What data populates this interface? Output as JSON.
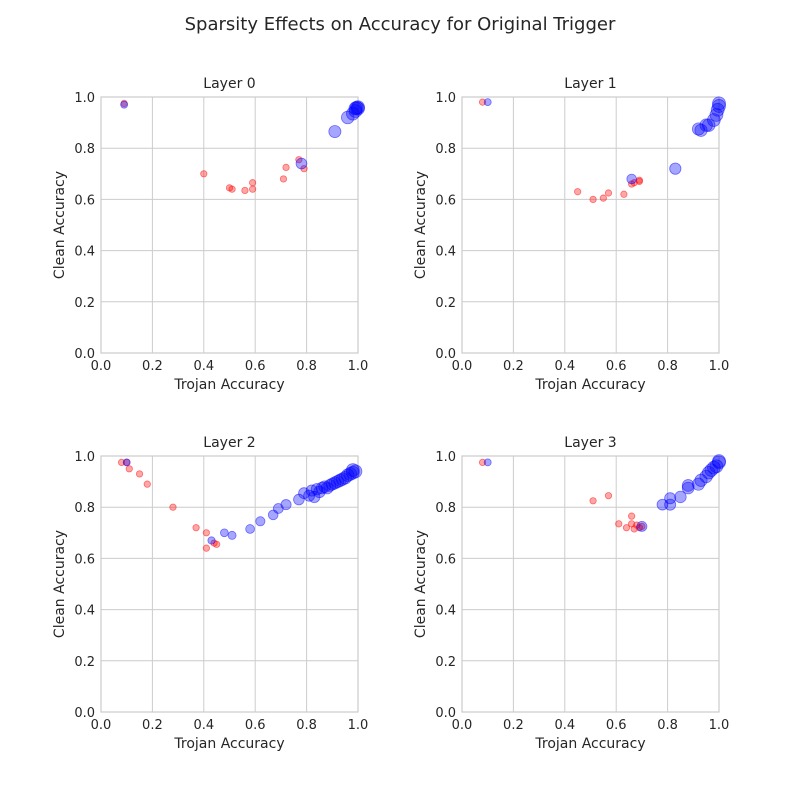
{
  "figure": {
    "title": "Sparsity Effects on Accuracy for Original Trigger"
  },
  "colors": {
    "red_series": "#ff0000",
    "blue_series": "#0000ff",
    "grid": "#cccccc",
    "text": "#262626"
  },
  "chart_data": [
    {
      "type": "scatter",
      "title": "Layer 0",
      "xlabel": "Trojan Accuracy",
      "ylabel": "Clean Accuracy",
      "xlim": [
        0.0,
        1.0
      ],
      "ylim": [
        0.0,
        1.0
      ],
      "xticks": [
        "0.0",
        "0.2",
        "0.4",
        "0.6",
        "0.8",
        "1.0"
      ],
      "yticks": [
        "0.0",
        "0.2",
        "0.4",
        "0.6",
        "0.8",
        "1.0"
      ],
      "grid": true,
      "series": [
        {
          "color": "red",
          "points": [
            [
              0.09,
              0.975
            ],
            [
              0.4,
              0.7
            ],
            [
              0.5,
              0.645
            ],
            [
              0.51,
              0.64
            ],
            [
              0.56,
              0.635
            ],
            [
              0.59,
              0.64
            ],
            [
              0.59,
              0.665
            ],
            [
              0.71,
              0.68
            ],
            [
              0.72,
              0.725
            ],
            [
              0.77,
              0.755
            ],
            [
              0.79,
              0.72
            ]
          ]
        },
        {
          "color": "blue",
          "points": [
            [
              0.09,
              0.97
            ],
            [
              0.78,
              0.74
            ],
            [
              0.91,
              0.865
            ],
            [
              0.96,
              0.92
            ],
            [
              0.98,
              0.935
            ],
            [
              0.99,
              0.945
            ],
            [
              0.99,
              0.955
            ],
            [
              0.995,
              0.958
            ],
            [
              1.0,
              0.955
            ],
            [
              1.0,
              0.96
            ]
          ]
        }
      ]
    },
    {
      "type": "scatter",
      "title": "Layer 1",
      "xlabel": "Trojan Accuracy",
      "ylabel": "Clean Accuracy",
      "xlim": [
        0.0,
        1.0
      ],
      "ylim": [
        0.0,
        1.0
      ],
      "xticks": [
        "0.0",
        "0.2",
        "0.4",
        "0.6",
        "0.8",
        "1.0"
      ],
      "yticks": [
        "0.0",
        "0.2",
        "0.4",
        "0.6",
        "0.8",
        "1.0"
      ],
      "grid": true,
      "series": [
        {
          "color": "red",
          "points": [
            [
              0.08,
              0.98
            ],
            [
              0.45,
              0.63
            ],
            [
              0.51,
              0.6
            ],
            [
              0.55,
              0.605
            ],
            [
              0.57,
              0.625
            ],
            [
              0.63,
              0.62
            ],
            [
              0.66,
              0.66
            ],
            [
              0.67,
              0.665
            ],
            [
              0.69,
              0.67
            ],
            [
              0.69,
              0.675
            ]
          ]
        },
        {
          "color": "blue",
          "points": [
            [
              0.1,
              0.98
            ],
            [
              0.66,
              0.68
            ],
            [
              0.83,
              0.72
            ],
            [
              0.92,
              0.875
            ],
            [
              0.93,
              0.87
            ],
            [
              0.95,
              0.89
            ],
            [
              0.96,
              0.89
            ],
            [
              0.98,
              0.91
            ],
            [
              0.99,
              0.93
            ],
            [
              0.995,
              0.95
            ],
            [
              1.0,
              0.965
            ],
            [
              1.0,
              0.975
            ]
          ]
        }
      ]
    },
    {
      "type": "scatter",
      "title": "Layer 2",
      "xlabel": "Trojan Accuracy",
      "ylabel": "Clean Accuracy",
      "xlim": [
        0.0,
        1.0
      ],
      "ylim": [
        0.0,
        1.0
      ],
      "xticks": [
        "0.0",
        "0.2",
        "0.4",
        "0.6",
        "0.8",
        "1.0"
      ],
      "yticks": [
        "0.0",
        "0.2",
        "0.4",
        "0.6",
        "0.8",
        "1.0"
      ],
      "grid": true,
      "series": [
        {
          "color": "red",
          "points": [
            [
              0.08,
              0.975
            ],
            [
              0.1,
              0.975
            ],
            [
              0.11,
              0.95
            ],
            [
              0.15,
              0.93
            ],
            [
              0.18,
              0.89
            ],
            [
              0.28,
              0.8
            ],
            [
              0.37,
              0.72
            ],
            [
              0.41,
              0.7
            ],
            [
              0.41,
              0.64
            ],
            [
              0.44,
              0.66
            ],
            [
              0.45,
              0.655
            ]
          ]
        },
        {
          "color": "blue",
          "points": [
            [
              0.1,
              0.975
            ],
            [
              0.43,
              0.67
            ],
            [
              0.48,
              0.7
            ],
            [
              0.51,
              0.69
            ],
            [
              0.58,
              0.715
            ],
            [
              0.62,
              0.745
            ],
            [
              0.67,
              0.77
            ],
            [
              0.69,
              0.795
            ],
            [
              0.72,
              0.81
            ],
            [
              0.77,
              0.83
            ],
            [
              0.79,
              0.855
            ],
            [
              0.81,
              0.845
            ],
            [
              0.82,
              0.865
            ],
            [
              0.83,
              0.84
            ],
            [
              0.84,
              0.87
            ],
            [
              0.85,
              0.86
            ],
            [
              0.86,
              0.875
            ],
            [
              0.87,
              0.88
            ],
            [
              0.88,
              0.875
            ],
            [
              0.89,
              0.885
            ],
            [
              0.9,
              0.89
            ],
            [
              0.91,
              0.895
            ],
            [
              0.92,
              0.9
            ],
            [
              0.93,
              0.905
            ],
            [
              0.94,
              0.91
            ],
            [
              0.95,
              0.915
            ],
            [
              0.96,
              0.925
            ],
            [
              0.97,
              0.93
            ],
            [
              0.98,
              0.935
            ],
            [
              0.98,
              0.945
            ],
            [
              0.99,
              0.94
            ]
          ]
        }
      ]
    },
    {
      "type": "scatter",
      "title": "Layer 3",
      "xlabel": "Trojan Accuracy",
      "ylabel": "Clean Accuracy",
      "xlim": [
        0.0,
        1.0
      ],
      "ylim": [
        0.0,
        1.0
      ],
      "xticks": [
        "0.0",
        "0.2",
        "0.4",
        "0.6",
        "0.8",
        "1.0"
      ],
      "yticks": [
        "0.0",
        "0.2",
        "0.4",
        "0.6",
        "0.8",
        "1.0"
      ],
      "grid": true,
      "series": [
        {
          "color": "red",
          "points": [
            [
              0.08,
              0.975
            ],
            [
              0.51,
              0.825
            ],
            [
              0.57,
              0.845
            ],
            [
              0.61,
              0.735
            ],
            [
              0.64,
              0.72
            ],
            [
              0.66,
              0.765
            ],
            [
              0.66,
              0.735
            ],
            [
              0.67,
              0.715
            ],
            [
              0.68,
              0.73
            ],
            [
              0.69,
              0.72
            ],
            [
              0.7,
              0.725
            ]
          ]
        },
        {
          "color": "blue",
          "points": [
            [
              0.1,
              0.975
            ],
            [
              0.7,
              0.725
            ],
            [
              0.78,
              0.81
            ],
            [
              0.81,
              0.81
            ],
            [
              0.81,
              0.835
            ],
            [
              0.85,
              0.84
            ],
            [
              0.88,
              0.875
            ],
            [
              0.88,
              0.885
            ],
            [
              0.92,
              0.89
            ],
            [
              0.93,
              0.905
            ],
            [
              0.95,
              0.92
            ],
            [
              0.96,
              0.935
            ],
            [
              0.97,
              0.945
            ],
            [
              0.98,
              0.955
            ],
            [
              0.99,
              0.96
            ],
            [
              1.0,
              0.975
            ],
            [
              1.0,
              0.98
            ]
          ]
        }
      ]
    }
  ]
}
